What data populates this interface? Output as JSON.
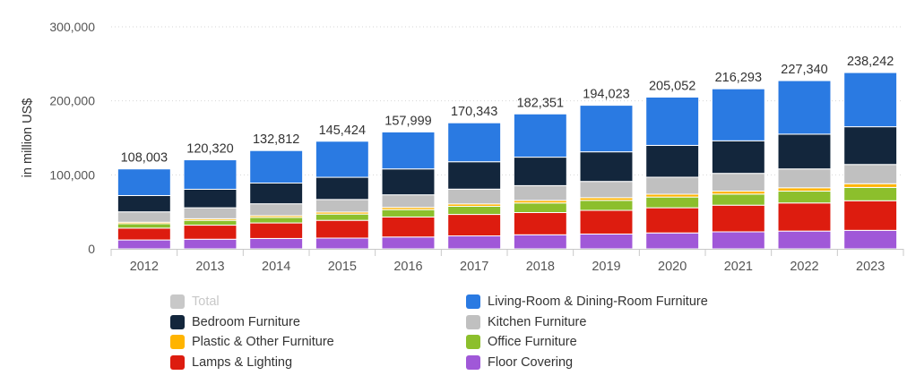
{
  "chart_data": {
    "type": "bar",
    "stacked": true,
    "categories": [
      "2012",
      "2013",
      "2014",
      "2015",
      "2016",
      "2017",
      "2018",
      "2019",
      "2020",
      "2021",
      "2022",
      "2023"
    ],
    "ylabel": "in million US$",
    "ylim": [
      0,
      300000
    ],
    "yticks": [
      0,
      100000,
      200000,
      300000
    ],
    "ytick_labels": [
      "0",
      "100,000",
      "200,000",
      "300,000"
    ],
    "grid": true,
    "totals": [
      108003,
      120320,
      132812,
      145424,
      157999,
      170343,
      182351,
      194023,
      205052,
      216293,
      227340,
      238242
    ],
    "total_labels": [
      "108,003",
      "120,320",
      "132,812",
      "145,424",
      "157,999",
      "170,343",
      "182,351",
      "194,023",
      "205,052",
      "216,293",
      "227,340",
      "238,242"
    ],
    "series": [
      {
        "name": "Floor Covering",
        "color": "#a058d8",
        "values": [
          12000,
          13000,
          14000,
          14500,
          16000,
          17500,
          19000,
          20000,
          21500,
          23000,
          24000,
          25000
        ]
      },
      {
        "name": "Lamps & Lighting",
        "color": "#dd1c0f",
        "values": [
          16000,
          19000,
          21000,
          24000,
          27000,
          29000,
          30000,
          32000,
          34000,
          36000,
          38000,
          40000
        ]
      },
      {
        "name": "Office Furniture",
        "color": "#8cbf2c",
        "values": [
          6000,
          6500,
          7500,
          8500,
          10000,
          11000,
          13000,
          13500,
          14500,
          15000,
          16000,
          18000
        ]
      },
      {
        "name": "Plastic & Other Furniture",
        "color": "#ffb400",
        "values": [
          2000,
          2200,
          2400,
          2700,
          3000,
          3200,
          3400,
          3600,
          3800,
          4000,
          4500,
          5000
        ]
      },
      {
        "name": "Kitchen Furniture",
        "color": "#c0c0c0",
        "values": [
          14000,
          14800,
          16000,
          17000,
          17000,
          20000,
          20000,
          22000,
          23000,
          24000,
          25500,
          26000
        ]
      },
      {
        "name": "Bedroom Furniture",
        "color": "#13263c",
        "values": [
          22000,
          25000,
          28000,
          30000,
          35000,
          37000,
          38500,
          40000,
          43000,
          44000,
          47000,
          51000
        ]
      },
      {
        "name": "Living-Room & Dining-Room Furniture",
        "color": "#2a7ae2",
        "values": [
          36003,
          39820,
          43912,
          48724,
          49999,
          52643,
          58451,
          62923,
          65252,
          70293,
          72340,
          73242
        ]
      }
    ]
  },
  "legend": {
    "items": [
      {
        "label": "Total",
        "color": "#c8c8c8",
        "hidden": true
      },
      {
        "label": "Living-Room & Dining-Room Furniture",
        "color": "#2a7ae2"
      },
      {
        "label": "Bedroom Furniture",
        "color": "#13263c"
      },
      {
        "label": "Kitchen Furniture",
        "color": "#c0c0c0"
      },
      {
        "label": "Plastic & Other Furniture",
        "color": "#ffb400"
      },
      {
        "label": "Office Furniture",
        "color": "#8cbf2c"
      },
      {
        "label": "Lamps & Lighting",
        "color": "#dd1c0f"
      },
      {
        "label": "Floor Covering",
        "color": "#a058d8"
      }
    ]
  }
}
